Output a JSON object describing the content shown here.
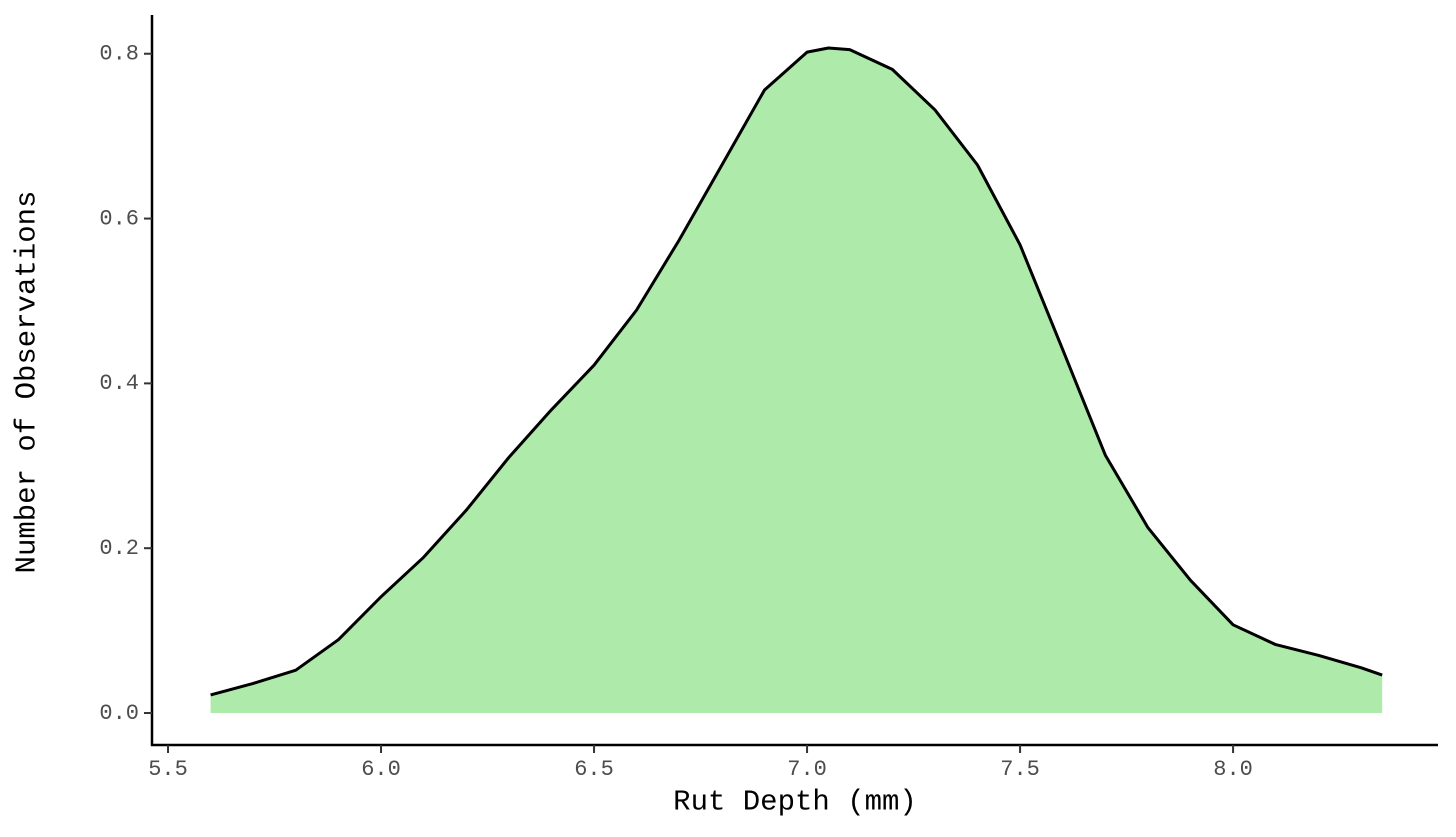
{
  "chart_data": {
    "type": "area",
    "x_label": "Rut Depth (mm)",
    "y_label": "Number of Observations",
    "x": [
      5.6,
      5.7,
      5.8,
      5.9,
      6.0,
      6.1,
      6.2,
      6.3,
      6.4,
      6.5,
      6.6,
      6.7,
      6.8,
      6.9,
      7.0,
      7.05,
      7.1,
      7.2,
      7.3,
      7.4,
      7.5,
      7.6,
      7.7,
      7.8,
      7.9,
      8.0,
      8.1,
      8.2,
      8.3,
      8.35
    ],
    "series": [
      {
        "color": "#aeeaaa",
        "line_color": "#000000",
        "values": [
          0.022,
          0.036,
          0.052,
          0.089,
          0.141,
          0.189,
          0.246,
          0.31,
          0.368,
          0.422,
          0.489,
          0.574,
          0.665,
          0.756,
          0.802,
          0.807,
          0.805,
          0.781,
          0.732,
          0.665,
          0.568,
          0.441,
          0.313,
          0.225,
          0.161,
          0.107,
          0.083,
          0.07,
          0.055,
          0.046
        ]
      }
    ],
    "xlim": [
      5.4624,
      8.481
    ],
    "ylim": [
      -0.0388,
      0.847
    ],
    "xticks": [
      5.5,
      {
        "value": 6,
        "label": "6.0"
      },
      6.5,
      {
        "value": 7,
        "label": "7.0"
      },
      7.5,
      {
        "value": 8,
        "label": "8.0"
      }
    ],
    "yticks": [
      {
        "value": 0,
        "label": "0.0"
      },
      0.2,
      0.4,
      0.6,
      0.8
    ],
    "grid": false
  }
}
